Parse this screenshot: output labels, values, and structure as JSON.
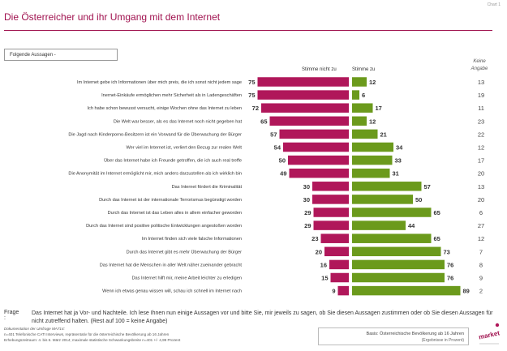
{
  "chart_label": "Chart 1",
  "title": "Die Österreicher und ihr Umgang mit dem Internet",
  "aussagen_label": "Folgende Aussagen -",
  "header_left": "Stimme nicht zu",
  "header_right": "Stimme zu",
  "keine_angabe_line1": "Keine",
  "keine_angabe_line2": "Angabe",
  "colors": {
    "nicht_zu": "#b0175a",
    "zu": "#6b9a1c",
    "title": "#a0124f"
  },
  "chart_data": {
    "type": "bar",
    "categories": [
      "Im Internet gebe  ich Informationen über mich preis, die ich sonst nicht jedem sage",
      "Inernet-Einkäufe ermöglichen mehr Sicherheit als in Ladengeschäften",
      "Ich habe schon bewusst versucht, einige Wochen ohne das Internet zu leben",
      "Die Welt war besser, als es das Internet noch nicht gegeben  hat",
      "Die Jagd nach Kinderporno-Besitzern ist ein Vorwand für die Überwachung der Bürger",
      "Wer viel im Internet  ist, verliert den Bezug zur realen Welt",
      "Über das Internet habe ich Freunde getroffen,  die ich auch real treffe",
      "Die Anonymität im Internet ermöglicht mir, mich anders darzustellen als ich wirklich bin",
      "Das Internet fördert die Kriminalität",
      "Durch das Internet  ist der internationale Terrorismus begünstigt worden",
      "Durch das Internet ist das Leben  alles in allem einfacher geworden",
      "Durch das Internet sind positive politische Entwicklungen angestoßen  worden",
      "Im Internet  finden sich viele falsche Informationen",
      "Durch das Internet gibt es mehr  Überwachung der Bürger",
      "Das Internet hat die Menschen  in aller Welt näher zueinander gebracht",
      "Das Internet  hilft mir, meine Arbeit  leichter zu erledigen",
      "Wenn ich etwas genau wissen will, schau ich schnell im Internet nach"
    ],
    "series": [
      {
        "name": "Stimme nicht zu",
        "values": [
          75,
          75,
          72,
          65,
          57,
          54,
          50,
          49,
          30,
          30,
          29,
          29,
          23,
          20,
          16,
          15,
          9
        ]
      },
      {
        "name": "Stimme zu",
        "values": [
          12,
          6,
          17,
          12,
          21,
          34,
          33,
          31,
          57,
          50,
          65,
          44,
          65,
          73,
          76,
          76,
          89
        ]
      },
      {
        "name": "Keine Angabe",
        "values": [
          13,
          19,
          11,
          23,
          22,
          12,
          17,
          20,
          13,
          20,
          6,
          27,
          12,
          7,
          8,
          9,
          2
        ]
      }
    ]
  },
  "frage_label": "Frage :",
  "frage_text": "Das Internet hat ja Vor- und Nachteile. Ich lese Ihnen nun einige Aussagen vor und bitte Sie, mir jeweils zu sagen, ob Sie diesen Aussagen zustimmen oder ob Sie diesen Aussagen für nicht zutreffend halten. (Rest auf 100 = keine Angabe)",
  "footer_line1": "Dokumentation der Umfrage MA714:",
  "footer_line2": "n=401 Telefonische CATI Interviews, repräsentativ für die österreichische Bevölkerung ab 16 Jahren",
  "footer_line3": "Erhebungszeitraum: 4. bis 6. März 2014; maximale statistische Schwankungsbreite n=401 +/- 4,99 Prozent",
  "basis_line1": "Basis: Österreichische Bevölkerung ab 16 Jahren",
  "basis_line2": "(Ergebnisse in Prozent)",
  "logo_text": "market"
}
